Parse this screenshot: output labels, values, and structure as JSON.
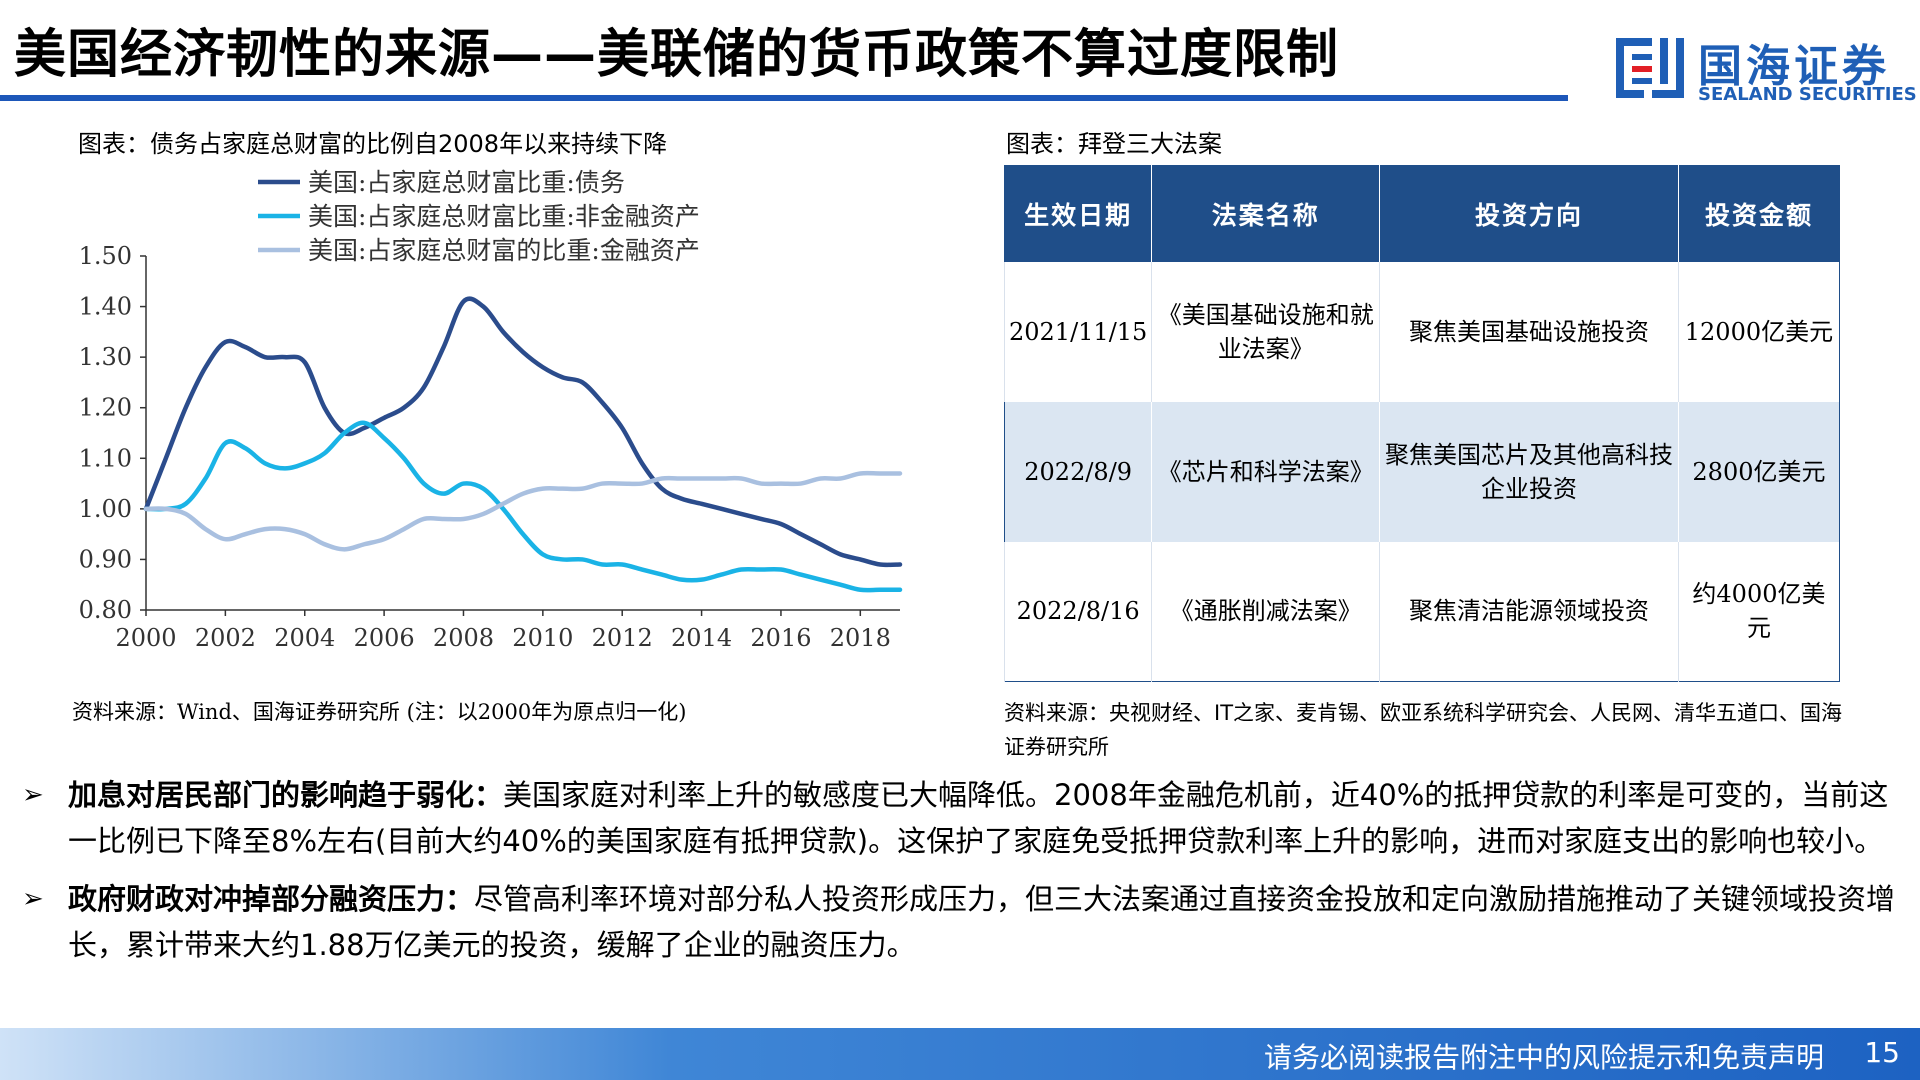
{
  "header": {
    "title": "美国经济韧性的来源——美联储的货币政策不算过度限制",
    "logo_cn": "国海证券",
    "logo_en": "SEALAND SECURITIES"
  },
  "chart_caption": "图表：债务占家庭总财富的比例自2008年以来持续下降",
  "chart_source": "资料来源：Wind、国海证券研究所  (注：以2000年为原点归一化)",
  "chart_data": {
    "type": "line",
    "title": "图表：债务占家庭总财富的比例自2008年以来持续下降",
    "xlabel": "",
    "ylabel": "",
    "xlim": [
      2000,
      2019
    ],
    "ylim": [
      0.8,
      1.5
    ],
    "xticks": [
      "2000",
      "2002",
      "2004",
      "2006",
      "2008",
      "2010",
      "2012",
      "2014",
      "2016",
      "2018"
    ],
    "yticks": [
      "0.80",
      "0.90",
      "1.00",
      "1.10",
      "1.20",
      "1.30",
      "1.40",
      "1.50"
    ],
    "legend_position": "top",
    "grid": false,
    "series": [
      {
        "name": "美国:占家庭总财富比重:债务",
        "color": "#2b4c8c",
        "x": [
          2000,
          2000.5,
          2001,
          2001.5,
          2002,
          2002.5,
          2003,
          2003.5,
          2004,
          2004.5,
          2005,
          2005.5,
          2006,
          2006.5,
          2007,
          2007.5,
          2008,
          2008.5,
          2009,
          2009.5,
          2010,
          2010.5,
          2011,
          2011.5,
          2012,
          2012.5,
          2013,
          2013.5,
          2014,
          2014.5,
          2015,
          2015.5,
          2016,
          2016.5,
          2017,
          2017.5,
          2018,
          2018.5,
          2019
        ],
        "values": [
          1.0,
          1.1,
          1.2,
          1.28,
          1.33,
          1.32,
          1.3,
          1.3,
          1.29,
          1.2,
          1.15,
          1.16,
          1.18,
          1.2,
          1.24,
          1.32,
          1.41,
          1.4,
          1.35,
          1.31,
          1.28,
          1.26,
          1.25,
          1.21,
          1.16,
          1.09,
          1.04,
          1.02,
          1.01,
          1.0,
          0.99,
          0.98,
          0.97,
          0.95,
          0.93,
          0.91,
          0.9,
          0.89,
          0.89
        ]
      },
      {
        "name": "美国:占家庭总财富比重:非金融资产",
        "color": "#1ab3e6",
        "x": [
          2000,
          2000.5,
          2001,
          2001.5,
          2002,
          2002.5,
          2003,
          2003.5,
          2004,
          2004.5,
          2005,
          2005.5,
          2006,
          2006.5,
          2007,
          2007.5,
          2008,
          2008.5,
          2009,
          2009.5,
          2010,
          2010.5,
          2011,
          2011.5,
          2012,
          2012.5,
          2013,
          2013.5,
          2014,
          2014.5,
          2015,
          2015.5,
          2016,
          2016.5,
          2017,
          2017.5,
          2018,
          2018.5,
          2019
        ],
        "values": [
          1.0,
          1.0,
          1.01,
          1.06,
          1.13,
          1.12,
          1.09,
          1.08,
          1.09,
          1.11,
          1.15,
          1.17,
          1.14,
          1.1,
          1.05,
          1.03,
          1.05,
          1.04,
          1.0,
          0.95,
          0.91,
          0.9,
          0.9,
          0.89,
          0.89,
          0.88,
          0.87,
          0.86,
          0.86,
          0.87,
          0.88,
          0.88,
          0.88,
          0.87,
          0.86,
          0.85,
          0.84,
          0.84,
          0.84
        ]
      },
      {
        "name": "美国:占家庭总财富的比重:金融资产",
        "color": "#a9c0e0",
        "x": [
          2000,
          2000.5,
          2001,
          2001.5,
          2002,
          2002.5,
          2003,
          2003.5,
          2004,
          2004.5,
          2005,
          2005.5,
          2006,
          2006.5,
          2007,
          2007.5,
          2008,
          2008.5,
          2009,
          2009.5,
          2010,
          2010.5,
          2011,
          2011.5,
          2012,
          2012.5,
          2013,
          2013.5,
          2014,
          2014.5,
          2015,
          2015.5,
          2016,
          2016.5,
          2017,
          2017.5,
          2018,
          2018.5,
          2019
        ],
        "values": [
          1.0,
          1.0,
          0.99,
          0.96,
          0.94,
          0.95,
          0.96,
          0.96,
          0.95,
          0.93,
          0.92,
          0.93,
          0.94,
          0.96,
          0.98,
          0.98,
          0.98,
          0.99,
          1.01,
          1.03,
          1.04,
          1.04,
          1.04,
          1.05,
          1.05,
          1.05,
          1.06,
          1.06,
          1.06,
          1.06,
          1.06,
          1.05,
          1.05,
          1.05,
          1.06,
          1.06,
          1.07,
          1.07,
          1.07
        ]
      }
    ]
  },
  "table_caption": "图表：拜登三大法案",
  "table": {
    "headers": [
      "生效日期",
      "法案名称",
      "投资方向",
      "投资金额"
    ],
    "rows": [
      [
        "2021/11/15",
        "《美国基础设施和就业法案》",
        "聚焦美国基础设施投资",
        "12000亿美元"
      ],
      [
        "2022/8/9",
        "《芯片和科学法案》",
        "聚焦美国芯片及其他高科技企业投资",
        "2800亿美元"
      ],
      [
        "2022/8/16",
        "《通胀削减法案》",
        "聚焦清洁能源领域投资",
        "约4000亿美元"
      ]
    ]
  },
  "table_source": "资料来源：央视财经、IT之家、麦肯锡、欧亚系统科学研究会、人民网、清华五道口、国海证券研究所",
  "bullets": [
    {
      "marker": "➢",
      "bold": "加息对居民部门的影响趋于弱化：",
      "text": "美国家庭对利率上升的敏感度已大幅降低。2008年金融危机前，近40%的抵押贷款的利率是可变的，当前这一比例已下降至8%左右(目前大约40%的美国家庭有抵押贷款)。这保护了家庭免受抵押贷款利率上升的影响，进而对家庭支出的影响也较小。"
    },
    {
      "marker": "➢",
      "bold": "政府财政对冲掉部分融资压力：",
      "text": "尽管高利率环境对部分私人投资形成压力，但三大法案通过直接资金投放和定向激励措施推动了关键领域投资增长，累计带来大约1.88万亿美元的投资，缓解了企业的融资压力。"
    }
  ],
  "footer": {
    "disclaimer": "请务必阅读报告附注中的风险提示和免责声明",
    "page": "15"
  }
}
